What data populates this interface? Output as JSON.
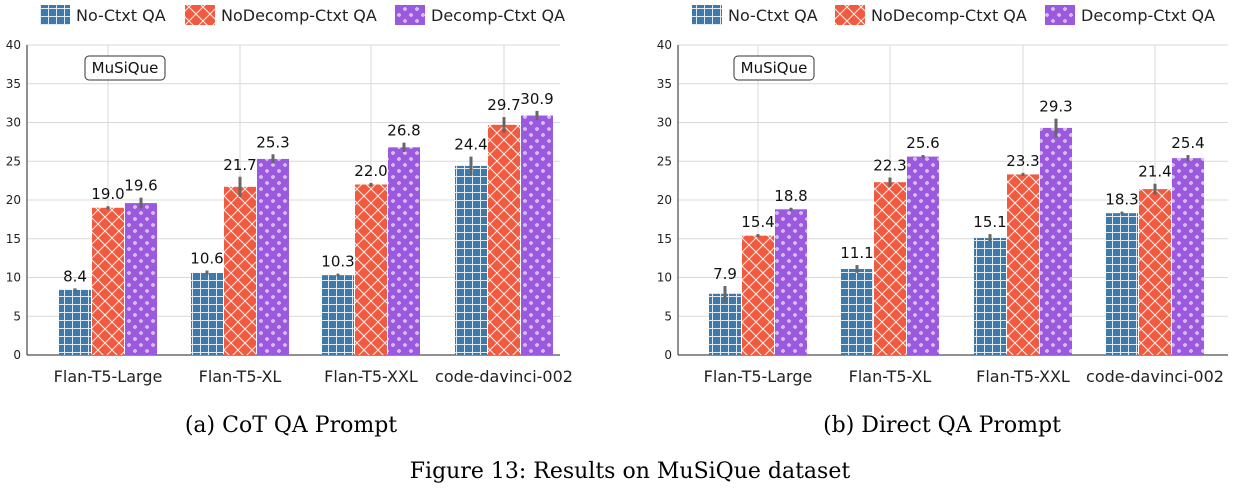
{
  "legend": {
    "items": [
      {
        "label": "No-Ctxt QA",
        "color": "#3d79ab",
        "pattern": "grid"
      },
      {
        "label": "NoDecomp-Ctxt QA",
        "color": "#f25a40",
        "pattern": "cross"
      },
      {
        "label": "Decomp-Ctxt QA",
        "color": "#9b59e0",
        "pattern": "dots"
      }
    ]
  },
  "figure_caption": "Figure 13: Results on MuSiQue dataset",
  "chart_data": [
    {
      "type": "bar",
      "caption": "(a) CoT QA Prompt",
      "annotation": "MuSiQue",
      "categories": [
        "Flan-T5-Large",
        "Flan-T5-XL",
        "Flan-T5-XXL",
        "code-davinci-002"
      ],
      "series": [
        {
          "name": "No-Ctxt QA",
          "values": [
            8.4,
            10.6,
            10.3,
            24.4
          ],
          "err": [
            0.2,
            0.3,
            0.2,
            1.2
          ],
          "labels": [
            "8.4",
            "10.6",
            "10.3",
            "24.4"
          ]
        },
        {
          "name": "NoDecomp-Ctxt QA",
          "values": [
            19.0,
            21.7,
            22.0,
            29.7
          ],
          "err": [
            0.2,
            1.3,
            0.2,
            1.0
          ],
          "labels": [
            "19.0",
            "21.7",
            "22.0",
            "29.7"
          ]
        },
        {
          "name": "Decomp-Ctxt QA",
          "values": [
            19.6,
            25.3,
            26.8,
            30.9
          ],
          "err": [
            0.7,
            0.6,
            0.6,
            0.6
          ],
          "labels": [
            "19.6",
            "25.3",
            "26.8",
            "30.9"
          ]
        }
      ],
      "ylim": [
        0,
        40
      ],
      "yticks": [
        "0",
        "5",
        "10",
        "15",
        "20",
        "25",
        "30",
        "35",
        "40"
      ],
      "grid": true
    },
    {
      "type": "bar",
      "caption": "(b) Direct QA Prompt",
      "annotation": "MuSiQue",
      "categories": [
        "Flan-T5-Large",
        "Flan-T5-XL",
        "Flan-T5-XXL",
        "code-davinci-002"
      ],
      "series": [
        {
          "name": "No-Ctxt QA",
          "values": [
            7.9,
            11.1,
            15.1,
            18.3
          ],
          "err": [
            1.0,
            0.5,
            0.5,
            0.2
          ],
          "labels": [
            "7.9",
            "11.1",
            "15.1",
            "18.3"
          ]
        },
        {
          "name": "NoDecomp-Ctxt QA",
          "values": [
            15.4,
            22.3,
            23.3,
            21.4
          ],
          "err": [
            0.2,
            0.6,
            0.2,
            0.7
          ],
          "labels": [
            "15.4",
            "22.3",
            "23.3",
            "21.4"
          ]
        },
        {
          "name": "Decomp-Ctxt QA",
          "values": [
            18.8,
            25.6,
            29.3,
            25.4
          ],
          "err": [
            0.2,
            0.2,
            1.2,
            0.4
          ],
          "labels": [
            "18.8",
            "25.6",
            "29.3",
            "25.4"
          ]
        }
      ],
      "ylim": [
        0,
        40
      ],
      "yticks": [
        "0",
        "5",
        "10",
        "15",
        "20",
        "25",
        "30",
        "35",
        "40"
      ],
      "grid": true
    }
  ]
}
